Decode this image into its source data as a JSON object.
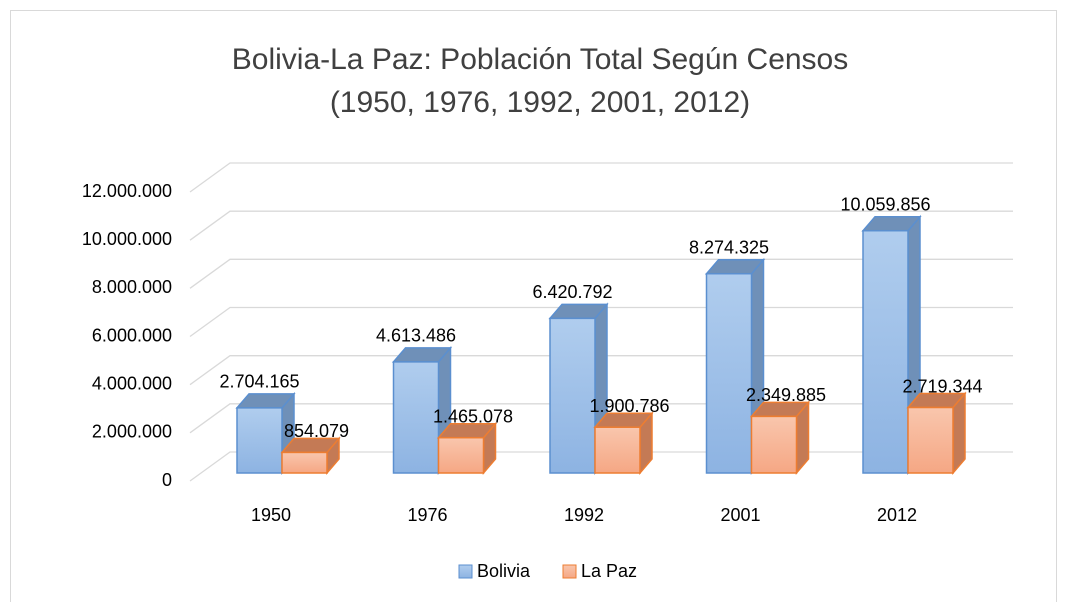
{
  "chart_data": {
    "type": "bar3d",
    "title": "Bolivia-La Paz: Población Total Según Censos (1950, 1976, 1992, 2001, 2012)",
    "categories": [
      "1950",
      "1976",
      "1992",
      "2001",
      "2012"
    ],
    "series": [
      {
        "name": "Bolivia",
        "color": "#9dbfe7",
        "values": [
          2704165,
          4613486,
          6420792,
          8274325,
          10059856
        ],
        "value_labels": [
          "2.704.165",
          "4.613.486",
          "6.420.792",
          "8.274.325",
          "10.059.856"
        ]
      },
      {
        "name": "La Paz",
        "color": "#f7b595",
        "values": [
          854079,
          1465078,
          1900786,
          2349885,
          2719344
        ],
        "value_labels": [
          "854.079",
          "1.465.078",
          "1.900.786",
          "2.349.885",
          "2.719.344"
        ]
      }
    ],
    "ylim": [
      0,
      12000000
    ],
    "yticks": [
      0,
      {
        "value": 2000000,
        "label": "2.000.000"
      },
      {
        "value": 4000000,
        "label": "4.000.000"
      },
      {
        "value": 6000000,
        "label": "6.000.000"
      },
      {
        "value": 8000000,
        "label": "8.000.000"
      },
      {
        "value": 10000000,
        "label": "10.000.000"
      },
      {
        "value": 12000000,
        "label": "12.000.000"
      }
    ],
    "grid": true,
    "legend": "bottom"
  }
}
